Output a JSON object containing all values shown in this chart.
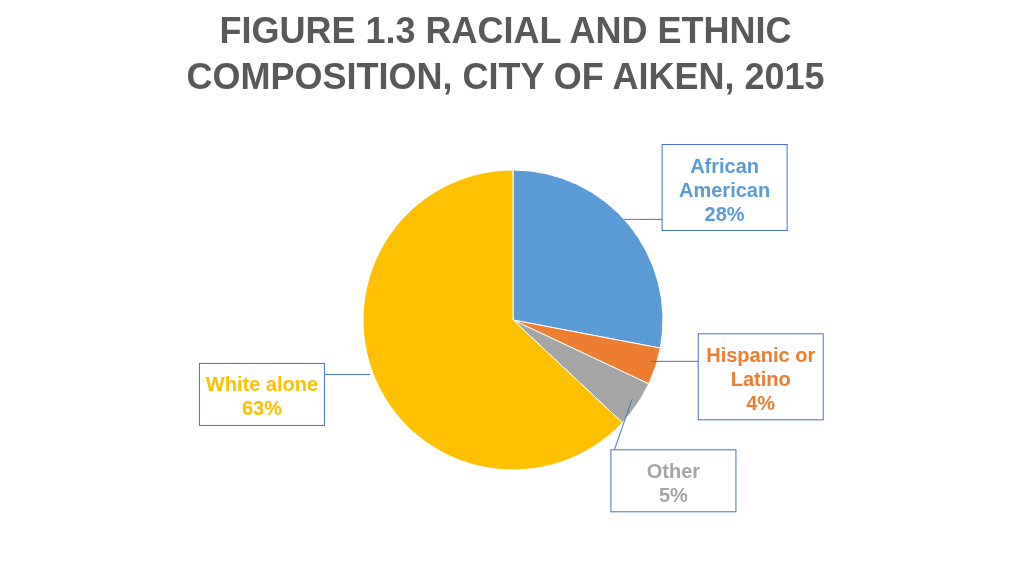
{
  "chart_data": {
    "type": "pie",
    "title": "FIGURE 1.3 RACIAL AND ETHNIC COMPOSITION, CITY OF AIKEN, 2015",
    "categories": [
      "African American",
      "Hispanic or Latino",
      "Other",
      "White alone"
    ],
    "values": [
      28,
      4,
      5,
      63
    ],
    "colors": [
      "#5b9bd5",
      "#ed7d31",
      "#a5a5a5",
      "#ffc000"
    ],
    "value_labels": [
      "28%",
      "4%",
      "5%",
      "63%"
    ],
    "legend": false
  }
}
